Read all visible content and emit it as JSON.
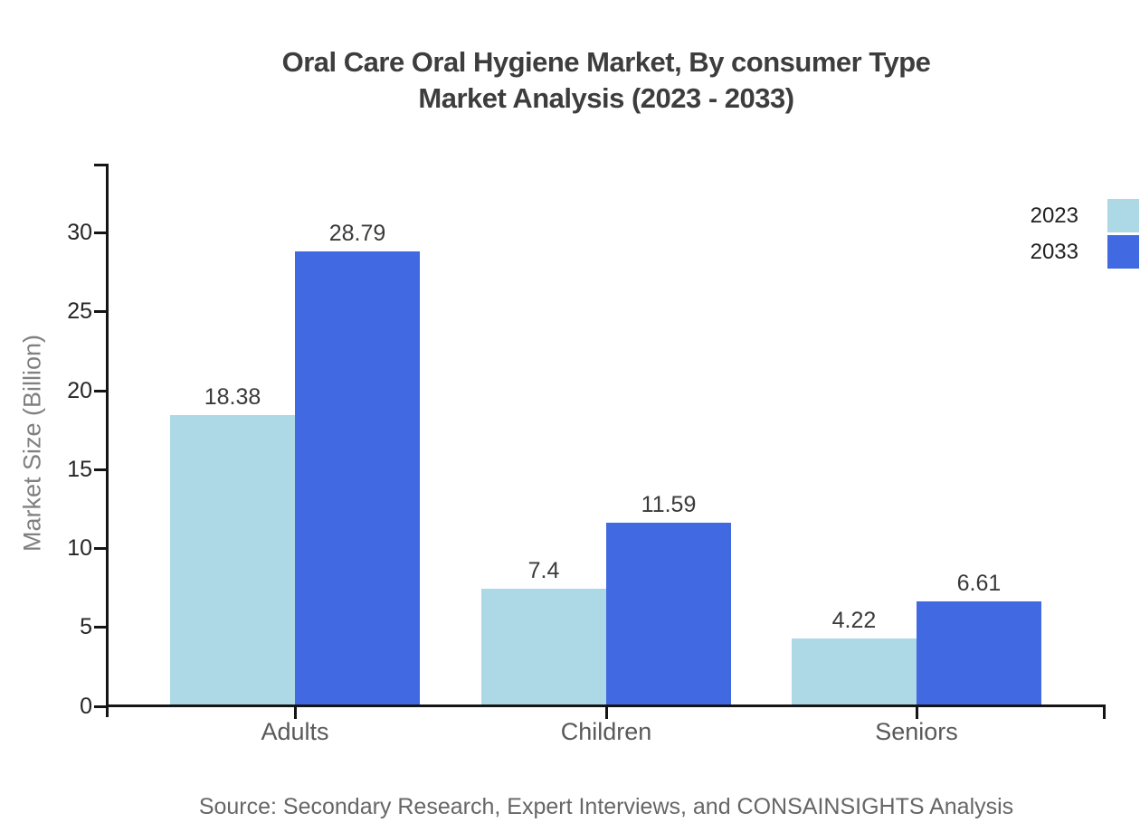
{
  "title": {
    "line1": "Oral Care Oral Hygiene Market, By consumer Type",
    "line2": "Market Analysis (2023 - 2033)"
  },
  "source_note": "Source: Secondary Research, Expert Interviews, and CONSAINSIGHTS Analysis",
  "legend": {
    "items": [
      {
        "label": "2023",
        "color": "#ADD8E6"
      },
      {
        "label": "2033",
        "color": "#4169E1"
      }
    ]
  },
  "colors": {
    "series_2023": "#ADD8E6",
    "series_2033": "#4169E1",
    "axis": "#151515",
    "title_text": "#3d3d3d",
    "tick_text": "#262626",
    "value_text": "#3a3a3a",
    "category_text": "#595959",
    "axis_title_text": "#808080",
    "source_text": "#666666"
  },
  "chart_data": {
    "type": "bar",
    "title": "Oral Care Oral Hygiene Market, By consumer Type Market Analysis (2023 - 2033)",
    "categories": [
      "Adults",
      "Children",
      "Seniors"
    ],
    "series": [
      {
        "name": "2023",
        "color": "#ADD8E6",
        "values": [
          18.38,
          7.4,
          4.22
        ]
      },
      {
        "name": "2033",
        "color": "#4169E1",
        "values": [
          28.79,
          11.59,
          6.61
        ]
      }
    ],
    "xlabel": "",
    "ylabel": "Market Size (Billion)",
    "ylim": [
      0,
      34.4
    ],
    "yticks": [
      0,
      5,
      10,
      15,
      20,
      25,
      30
    ],
    "grid": false,
    "legend_position": "top-right",
    "value_labels": true
  }
}
